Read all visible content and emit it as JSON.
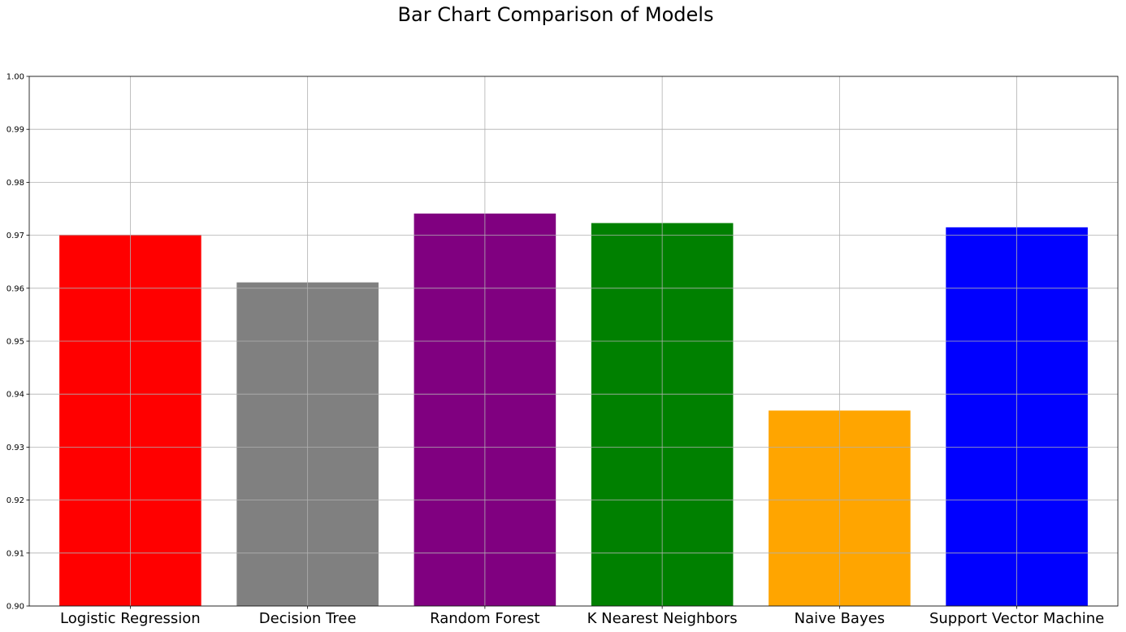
{
  "chart_data": {
    "type": "bar",
    "title": "Bar Chart Comparison of Models",
    "xlabel": "",
    "ylabel": "",
    "categories": [
      "Logistic Regression",
      "Decision Tree",
      "Random Forest",
      "K Nearest Neighbors",
      "Naive Bayes",
      "Support Vector Machine"
    ],
    "values": [
      0.9701,
      0.9611,
      0.9741,
      0.9723,
      0.9369,
      0.9715
    ],
    "colors": [
      "#ff0000",
      "#808080",
      "#800080",
      "#008000",
      "#ffa500",
      "#0000ff"
    ],
    "ylim": [
      0.9,
      1.0
    ],
    "yticks": [
      "0.90",
      "0.91",
      "0.92",
      "0.93",
      "0.94",
      "0.95",
      "0.96",
      "0.97",
      "0.98",
      "0.99",
      "1.00"
    ],
    "grid": true,
    "legend": "none"
  }
}
